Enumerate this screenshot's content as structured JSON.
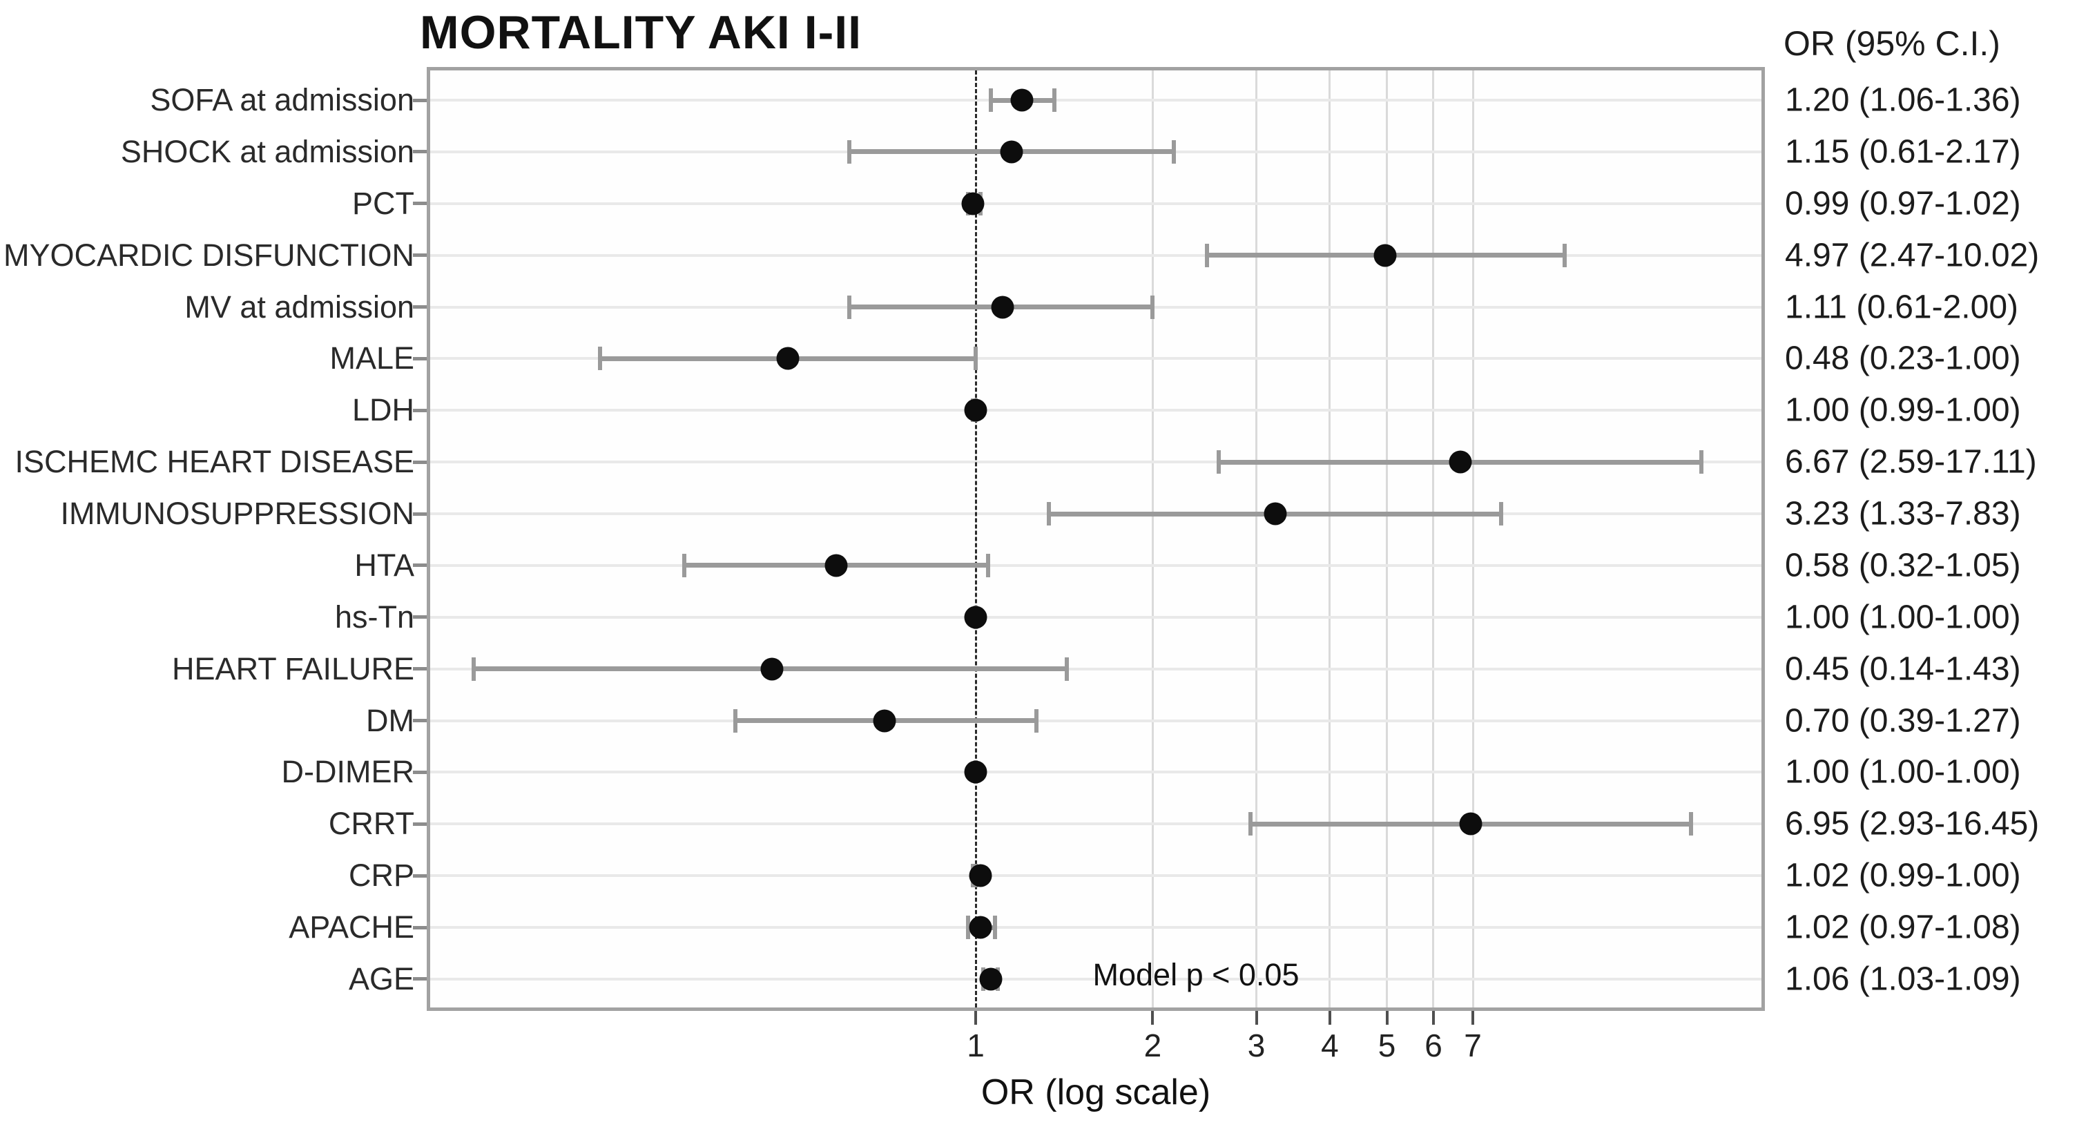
{
  "page": {
    "background": "#ffffff"
  },
  "chart_data": {
    "type": "scatter",
    "variant": "forest-plot",
    "title": "MORTALITY AKI I-II",
    "xlabel": "OR (log scale)",
    "x_scale": "log",
    "x_ticks": [
      1,
      2,
      3,
      4,
      5,
      6,
      7
    ],
    "x_range": [
      0.12,
      21.7
    ],
    "reference_line_x": 1,
    "grid": "light horizontal line per row; light vertical lines at integer ticks",
    "legend": "none",
    "annotation": "Model p < 0.05",
    "right_column_header": "OR (95% C.I.)",
    "rows": [
      {
        "label": "SOFA at admission",
        "or": 1.2,
        "ci_low": 1.06,
        "ci_high": 1.36,
        "or_ci_text": "1.20 (1.06-1.36)"
      },
      {
        "label": "SHOCK at admission",
        "or": 1.15,
        "ci_low": 0.61,
        "ci_high": 2.17,
        "or_ci_text": "1.15 (0.61-2.17)"
      },
      {
        "label": "PCT",
        "or": 0.99,
        "ci_low": 0.97,
        "ci_high": 1.02,
        "or_ci_text": "0.99 (0.97-1.02)"
      },
      {
        "label": "MYOCARDIC DISFUNCTION",
        "or": 4.97,
        "ci_low": 2.47,
        "ci_high": 10.02,
        "or_ci_text": "4.97 (2.47-10.02)"
      },
      {
        "label": "MV at admission",
        "or": 1.11,
        "ci_low": 0.61,
        "ci_high": 2.0,
        "or_ci_text": "1.11 (0.61-2.00)"
      },
      {
        "label": "MALE",
        "or": 0.48,
        "ci_low": 0.23,
        "ci_high": 1.0,
        "or_ci_text": "0.48 (0.23-1.00)"
      },
      {
        "label": "LDH",
        "or": 1.0,
        "ci_low": 0.99,
        "ci_high": 1.0,
        "or_ci_text": "1.00 (0.99-1.00)"
      },
      {
        "label": "ISCHEMC HEART DISEASE",
        "or": 6.67,
        "ci_low": 2.59,
        "ci_high": 17.11,
        "or_ci_text": "6.67 (2.59-17.11)"
      },
      {
        "label": "IMMUNOSUPPRESSION",
        "or": 3.23,
        "ci_low": 1.33,
        "ci_high": 7.83,
        "or_ci_text": "3.23 (1.33-7.83)"
      },
      {
        "label": "HTA",
        "or": 0.58,
        "ci_low": 0.32,
        "ci_high": 1.05,
        "or_ci_text": "0.58 (0.32-1.05)"
      },
      {
        "label": "hs-Tn",
        "or": 1.0,
        "ci_low": 1.0,
        "ci_high": 1.0,
        "or_ci_text": "1.00 (1.00-1.00)"
      },
      {
        "label": "HEART FAILURE",
        "or": 0.45,
        "ci_low": 0.14,
        "ci_high": 1.43,
        "or_ci_text": "0.45 (0.14-1.43)"
      },
      {
        "label": "DM",
        "or": 0.7,
        "ci_low": 0.39,
        "ci_high": 1.27,
        "or_ci_text": "0.70 (0.39-1.27)"
      },
      {
        "label": "D-DIMER",
        "or": 1.0,
        "ci_low": 1.0,
        "ci_high": 1.0,
        "or_ci_text": "1.00 (1.00-1.00)"
      },
      {
        "label": "CRRT",
        "or": 6.95,
        "ci_low": 2.93,
        "ci_high": 16.45,
        "or_ci_text": "6.95 (2.93-16.45)"
      },
      {
        "label": "CRP",
        "or": 1.02,
        "ci_low": 0.99,
        "ci_high": 1.0,
        "or_ci_text": "1.02 (0.99-1.00)"
      },
      {
        "label": "APACHE",
        "or": 1.02,
        "ci_low": 0.97,
        "ci_high": 1.08,
        "or_ci_text": "1.02 (0.97-1.08)"
      },
      {
        "label": "AGE",
        "or": 1.06,
        "ci_low": 1.03,
        "ci_high": 1.09,
        "or_ci_text": "1.06 (1.03-1.09)"
      }
    ],
    "colors": {
      "marker": "#0d0d0d",
      "ci_line": "#9a9a9a",
      "row_gridline": "#e9e9e9",
      "x_gridline": "#dadada",
      "panel_border": "#a2a2a2",
      "reference_line": "#2b2b2b",
      "text": "#1c1c1c",
      "background": "#ffffff"
    }
  }
}
